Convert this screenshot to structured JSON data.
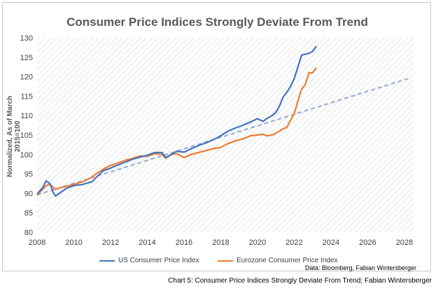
{
  "chart_data": {
    "type": "line",
    "title": "Consumer Price Indices Strongly Deviate From Trend",
    "xlabel": "",
    "ylabel": "Normalized, As of March 2015=100",
    "xlim": [
      2008,
      2028.5
    ],
    "ylim": [
      80,
      130
    ],
    "xticks": [
      "2008",
      "2010",
      "2012",
      "2014",
      "2016",
      "2018",
      "2020",
      "2022",
      "2024",
      "2026",
      "2028"
    ],
    "yticks": [
      "80",
      "85",
      "90",
      "95",
      "100",
      "105",
      "110",
      "115",
      "120",
      "125",
      "130"
    ],
    "grid": "hatched background",
    "legend_position": "bottom",
    "series": [
      {
        "name": "US Consumer Price Index",
        "color": "#4472c4",
        "x": [
          2008.0,
          2008.3,
          2008.5,
          2008.7,
          2008.9,
          2009.0,
          2009.3,
          2009.6,
          2010.0,
          2010.5,
          2011.0,
          2011.3,
          2011.6,
          2012.0,
          2012.4,
          2012.8,
          2013.2,
          2013.6,
          2014.0,
          2014.4,
          2014.8,
          2015.0,
          2015.3,
          2015.6,
          2016.0,
          2016.4,
          2016.8,
          2017.2,
          2017.6,
          2018.0,
          2018.4,
          2018.8,
          2019.2,
          2019.6,
          2020.0,
          2020.3,
          2020.5,
          2020.8,
          2021.0,
          2021.2,
          2021.4,
          2021.6,
          2021.8,
          2022.0,
          2022.2,
          2022.4,
          2022.6,
          2022.8,
          2023.0,
          2023.2
        ],
        "values": [
          89.8,
          91.5,
          93.2,
          92.5,
          90.0,
          89.3,
          90.3,
          91.3,
          92.0,
          92.3,
          93.0,
          94.5,
          95.8,
          96.5,
          97.3,
          98.0,
          98.8,
          99.3,
          99.8,
          100.5,
          100.5,
          99.2,
          100.0,
          100.8,
          100.6,
          101.5,
          102.3,
          103.0,
          103.8,
          104.8,
          106.0,
          106.8,
          107.5,
          108.3,
          109.2,
          108.5,
          109.2,
          110.0,
          110.8,
          112.5,
          114.8,
          116.0,
          117.5,
          119.5,
          122.5,
          125.5,
          125.8,
          126.0,
          126.5,
          127.8
        ]
      },
      {
        "name": "Eurozone Consumer Price Index",
        "color": "#ed7d31",
        "x": [
          2008.0,
          2008.3,
          2008.5,
          2008.7,
          2008.9,
          2009.0,
          2009.3,
          2009.6,
          2010.0,
          2010.5,
          2011.0,
          2011.3,
          2011.6,
          2012.0,
          2012.4,
          2012.8,
          2013.2,
          2013.6,
          2014.0,
          2014.4,
          2014.8,
          2015.0,
          2015.3,
          2015.6,
          2016.0,
          2016.4,
          2016.8,
          2017.2,
          2017.6,
          2018.0,
          2018.4,
          2018.8,
          2019.2,
          2019.6,
          2020.0,
          2020.3,
          2020.5,
          2020.8,
          2021.0,
          2021.2,
          2021.4,
          2021.6,
          2021.8,
          2022.0,
          2022.2,
          2022.4,
          2022.6,
          2022.8,
          2023.0,
          2023.2
        ],
        "values": [
          89.5,
          91.0,
          92.0,
          92.3,
          91.5,
          91.0,
          91.5,
          91.8,
          92.3,
          93.0,
          94.2,
          95.3,
          96.2,
          97.2,
          97.8,
          98.5,
          99.0,
          99.6,
          99.5,
          100.2,
          100.0,
          99.0,
          100.0,
          100.2,
          99.2,
          100.0,
          100.5,
          101.0,
          101.5,
          101.8,
          102.8,
          103.5,
          104.0,
          104.8,
          105.0,
          105.2,
          104.8,
          105.0,
          105.5,
          106.0,
          106.6,
          107.0,
          108.8,
          110.5,
          113.8,
          116.8,
          118.0,
          121.0,
          121.0,
          122.3
        ]
      },
      {
        "name": "",
        "style": "dashed",
        "color": "#8eaadb",
        "x": [
          2008.0,
          2028.2
        ],
        "values": [
          89.6,
          119.5
        ]
      }
    ]
  },
  "legend": {
    "us_label": "US Consumer Price Index",
    "eu_label": "Eurozone Consumer Price Index"
  },
  "source_text": "Data: Bloomberg, Fabian Wintersberger",
  "caption_text": "Chart 5: Consumer Price Indices Strongly Deviate From Trend; Fabian Wintersberger"
}
